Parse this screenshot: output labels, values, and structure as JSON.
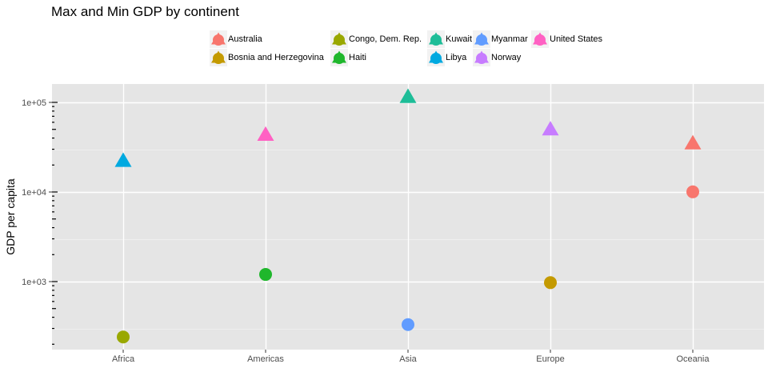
{
  "chart_data": {
    "type": "scatter",
    "title": "Max and Min GDP by continent",
    "xlabel": "",
    "ylabel": "GDP per capita",
    "y_scale": "log10",
    "ylim": [
      230,
      120000
    ],
    "categories": [
      "Africa",
      "Americas",
      "Asia",
      "Europe",
      "Oceania"
    ],
    "y_tick_labels": [
      "1e+03",
      "1e+04",
      "1e+05"
    ],
    "y_tick_values": [
      1000,
      10000,
      100000
    ],
    "grid": true,
    "legend_position": "top",
    "legend": [
      {
        "country": "Australia",
        "color": "#F8766D"
      },
      {
        "country": "Bosnia and Herzegovina",
        "color": "#C49A00"
      },
      {
        "country": "Congo, Dem. Rep.",
        "color": "#99A800"
      },
      {
        "country": "Haiti",
        "color": "#1FB72C"
      },
      {
        "country": "Kuwait",
        "color": "#1EBD98"
      },
      {
        "country": "Libya",
        "color": "#00A9E0"
      },
      {
        "country": "Myanmar",
        "color": "#619CFF"
      },
      {
        "country": "Norway",
        "color": "#C77CFF"
      },
      {
        "country": "United States",
        "color": "#FF61C3"
      }
    ],
    "shapes": {
      "max": "triangle",
      "min": "circle"
    },
    "points": [
      {
        "continent": "Africa",
        "country": "Libya",
        "stat": "max",
        "gdp": 21950
      },
      {
        "continent": "Africa",
        "country": "Congo, Dem. Rep.",
        "stat": "min",
        "gdp": 241
      },
      {
        "continent": "Americas",
        "country": "United States",
        "stat": "max",
        "gdp": 42950
      },
      {
        "continent": "Americas",
        "country": "Haiti",
        "stat": "min",
        "gdp": 1202
      },
      {
        "continent": "Asia",
        "country": "Kuwait",
        "stat": "max",
        "gdp": 113523
      },
      {
        "continent": "Asia",
        "country": "Myanmar",
        "stat": "min",
        "gdp": 331
      },
      {
        "continent": "Europe",
        "country": "Norway",
        "stat": "max",
        "gdp": 49357
      },
      {
        "continent": "Europe",
        "country": "Bosnia and Herzegovina",
        "stat": "min",
        "gdp": 974
      },
      {
        "continent": "Oceania",
        "country": "Australia",
        "stat": "max",
        "gdp": 34435
      },
      {
        "continent": "Oceania",
        "country": "Australia",
        "stat": "min",
        "gdp": 10040
      }
    ]
  }
}
